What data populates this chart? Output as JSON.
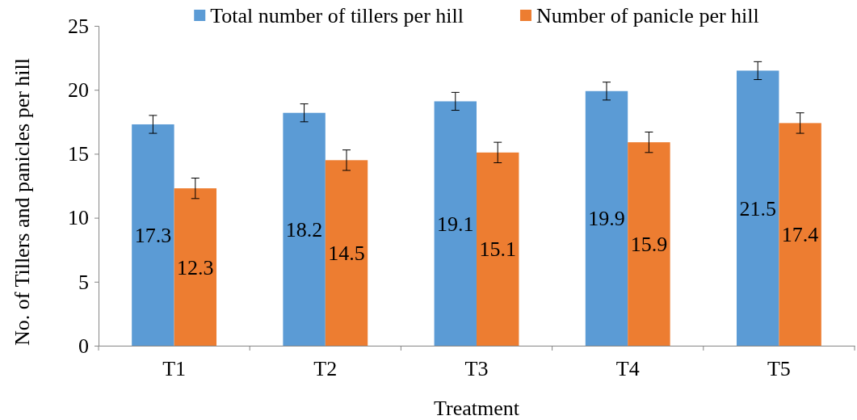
{
  "chart_data": {
    "type": "bar",
    "xlabel": "Treatment",
    "ylabel": "No. of Tillers and panicles per hill",
    "categories": [
      "T1",
      "T2",
      "T3",
      "T4",
      "T5"
    ],
    "series": [
      {
        "name": "Total number of tillers per hill",
        "color": "#5b9bd5",
        "values": [
          17.3,
          18.2,
          19.1,
          19.9,
          21.5
        ],
        "errors": [
          0.7,
          0.7,
          0.7,
          0.7,
          0.7
        ]
      },
      {
        "name": "Number of panicle per hill",
        "color": "#ed7d31",
        "values": [
          12.3,
          14.5,
          15.1,
          15.9,
          17.4
        ],
        "errors": [
          0.8,
          0.8,
          0.8,
          0.8,
          0.8
        ]
      }
    ],
    "ylim": [
      0,
      25
    ],
    "yticks": [
      0,
      5,
      10,
      15,
      20,
      25
    ],
    "grid": false,
    "legend": "top",
    "data_labels": true
  }
}
